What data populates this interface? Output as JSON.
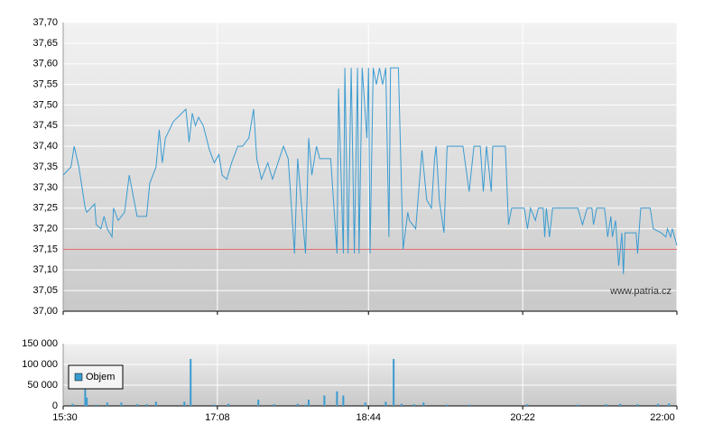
{
  "chart_data": [
    {
      "type": "line",
      "color": "#3a9bd0",
      "x": [
        "15:30",
        "15:35",
        "15:37",
        "15:40",
        "15:44",
        "15:45",
        "15:50",
        "15:51",
        "15:54",
        "15:56",
        "15:58",
        "16:01",
        "16:02",
        "16:05",
        "16:09",
        "16:11",
        "16:12",
        "16:17",
        "16:23",
        "16:25",
        "16:29",
        "16:31",
        "16:33",
        "16:35",
        "16:40",
        "16:48",
        "16:50",
        "16:52",
        "16:54",
        "16:56",
        "16:59",
        "17:03",
        "17:06",
        "17:09",
        "17:11",
        "17:14",
        "17:17",
        "17:21",
        "17:24",
        "17:28",
        "17:31",
        "17:33",
        "17:36",
        "17:40",
        "17:43",
        "17:50",
        "17:53",
        "17:57",
        "17:59",
        "18:04",
        "18:06",
        "18:08",
        "18:11",
        "18:13",
        "18:20",
        "18:24",
        "18:25",
        "18:28",
        "18:29",
        "18:31",
        "18:33",
        "18:35",
        "18:37",
        "18:38",
        "18:40",
        "18:43",
        "18:44",
        "18:45",
        "18:47",
        "18:49",
        "18:51",
        "18:53",
        "18:55",
        "18:57",
        "18:58",
        "19:03",
        "19:06",
        "19:09",
        "19:10",
        "19:14",
        "19:18",
        "19:21",
        "19:24",
        "19:26",
        "19:27",
        "19:29",
        "19:32",
        "19:34",
        "19:35",
        "19:44",
        "19:48",
        "19:51",
        "19:55",
        "19:57",
        "19:59",
        "20:02",
        "20:03",
        "20:11",
        "20:13",
        "20:15",
        "20:23",
        "20:25",
        "20:27",
        "20:30",
        "20:32",
        "20:35",
        "20:36",
        "20:37",
        "20:39",
        "20:41",
        "20:57",
        "21:00",
        "21:03",
        "21:06",
        "21:07",
        "21:09",
        "21:14",
        "21:16",
        "21:18",
        "21:19",
        "21:21",
        "21:23",
        "21:25",
        "21:26",
        "21:27",
        "21:34",
        "21:35",
        "21:37",
        "21:43",
        "21:45",
        "21:50",
        "21:53",
        "21:54",
        "21:56",
        "21:57",
        "22:00"
      ],
      "values": [
        37.33,
        37.35,
        37.4,
        37.35,
        37.25,
        37.24,
        37.26,
        37.21,
        37.2,
        37.23,
        37.2,
        37.18,
        37.25,
        37.22,
        37.24,
        37.3,
        37.33,
        37.23,
        37.23,
        37.31,
        37.35,
        37.44,
        37.36,
        37.42,
        37.46,
        37.49,
        37.41,
        37.48,
        37.45,
        37.47,
        37.45,
        37.39,
        37.36,
        37.38,
        37.33,
        37.32,
        37.36,
        37.4,
        37.4,
        37.42,
        37.49,
        37.37,
        37.32,
        37.36,
        37.32,
        37.4,
        37.37,
        37.14,
        37.37,
        37.14,
        37.42,
        37.33,
        37.4,
        37.37,
        37.37,
        37.14,
        37.54,
        37.14,
        37.59,
        37.14,
        37.59,
        37.14,
        37.59,
        37.14,
        37.59,
        37.42,
        37.59,
        37.14,
        37.59,
        37.55,
        37.59,
        37.55,
        37.59,
        37.18,
        37.59,
        37.59,
        37.15,
        37.24,
        37.22,
        37.2,
        37.39,
        37.27,
        37.25,
        37.37,
        37.4,
        37.27,
        37.19,
        37.4,
        37.4,
        37.4,
        37.29,
        37.4,
        37.4,
        37.29,
        37.4,
        37.29,
        37.4,
        37.4,
        37.21,
        37.25,
        37.25,
        37.2,
        37.25,
        37.22,
        37.25,
        37.25,
        37.18,
        37.25,
        37.18,
        37.25,
        37.25,
        37.21,
        37.25,
        37.25,
        37.21,
        37.25,
        37.25,
        37.18,
        37.23,
        37.18,
        37.22,
        37.11,
        37.19,
        37.09,
        37.19,
        37.19,
        37.14,
        37.25,
        37.25,
        37.2,
        37.19,
        37.18,
        37.2,
        37.18,
        37.2,
        37.16
      ],
      "reference_line": {
        "value": 37.15,
        "color": "#e07070"
      },
      "watermark": "www.patria.cz",
      "xlim": [
        "15:30",
        "22:00"
      ],
      "xticks": [
        "15:30",
        "17:08",
        "18:44",
        "20:22",
        "22:00"
      ],
      "ylim": [
        37.0,
        37.7
      ],
      "yticks": [
        {
          "value": 37.0,
          "label": "37,00"
        },
        {
          "value": 37.05,
          "label": "37,05"
        },
        {
          "value": 37.1,
          "label": "37,10"
        },
        {
          "value": 37.15,
          "label": "37,15"
        },
        {
          "value": 37.2,
          "label": "37,20"
        },
        {
          "value": 37.25,
          "label": "37,25"
        },
        {
          "value": 37.3,
          "label": "37,30"
        },
        {
          "value": 37.35,
          "label": "37,35"
        },
        {
          "value": 37.4,
          "label": "37,40"
        },
        {
          "value": 37.45,
          "label": "37,45"
        },
        {
          "value": 37.5,
          "label": "37,50"
        },
        {
          "value": 37.55,
          "label": "37,55"
        },
        {
          "value": 37.6,
          "label": "37,60"
        },
        {
          "value": 37.65,
          "label": "37,65"
        },
        {
          "value": 37.7,
          "label": "37,70"
        }
      ],
      "grid": true
    },
    {
      "type": "bar",
      "x": [
        "15:36",
        "15:44",
        "15:45",
        "15:51",
        "15:58",
        "16:07",
        "16:17",
        "16:23",
        "16:29",
        "16:47",
        "16:51",
        "17:06",
        "17:15",
        "17:34",
        "17:44",
        "17:59",
        "18:04",
        "18:06",
        "18:16",
        "18:24",
        "18:28",
        "18:42",
        "18:55",
        "19:00",
        "19:05",
        "19:13",
        "19:19",
        "19:34",
        "19:48",
        "20:25",
        "20:57",
        "21:15",
        "21:24",
        "21:35",
        "21:48",
        "21:55"
      ],
      "series": [
        {
          "name": "Objem",
          "color": "#3a9bd0",
          "values": [
            5000,
            48000,
            20000,
            3000,
            8000,
            8000,
            4000,
            4000,
            10000,
            10000,
            113000,
            3000,
            5000,
            15000,
            4000,
            5000,
            3000,
            15000,
            25000,
            35000,
            25000,
            8000,
            10000,
            113000,
            5000,
            4000,
            8000,
            3000,
            3000,
            4000,
            3000,
            4000,
            5000,
            4000,
            5000,
            6000
          ]
        }
      ],
      "xlim": [
        "15:30",
        "22:00"
      ],
      "xticks": [
        "15:30",
        "17:08",
        "18:44",
        "20:22",
        "22:00"
      ],
      "ylim": [
        0,
        150000
      ],
      "yticks": [
        0,
        {
          "value": 50000,
          "label": "50 000"
        },
        {
          "value": 100000,
          "label": "100 000"
        },
        {
          "value": 150000,
          "label": "150 000"
        }
      ],
      "grid": true
    }
  ]
}
